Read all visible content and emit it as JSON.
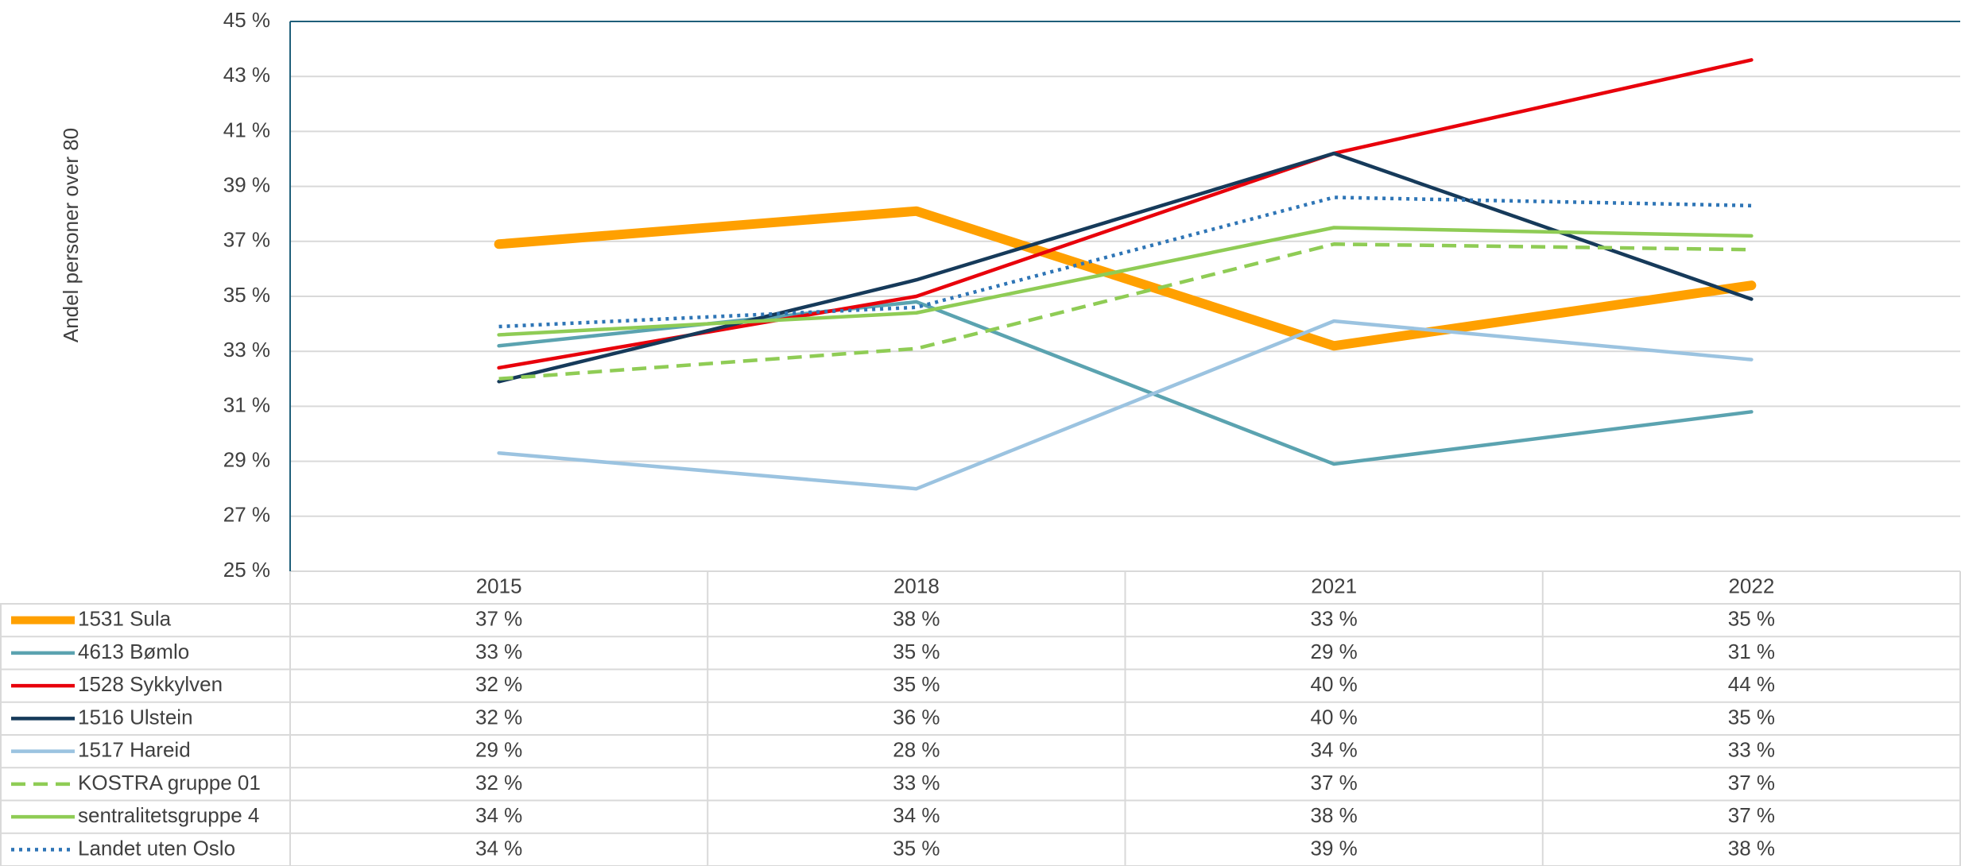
{
  "chart_data": {
    "type": "line",
    "y_label": "Andel personer over 80",
    "categories": [
      "2015",
      "2018",
      "2021",
      "2022"
    ],
    "ylim": [
      25,
      45
    ],
    "yticks": [
      {
        "value": 25,
        "label": "25 %"
      },
      {
        "value": 27,
        "label": "27 %"
      },
      {
        "value": 29,
        "label": "29 %"
      },
      {
        "value": 31,
        "label": "31 %"
      },
      {
        "value": 33,
        "label": "33 %"
      },
      {
        "value": 35,
        "label": "35 %"
      },
      {
        "value": 37,
        "label": "37 %"
      },
      {
        "value": 39,
        "label": "39 %"
      },
      {
        "value": 41,
        "label": "41 %"
      },
      {
        "value": 43,
        "label": "43 %"
      },
      {
        "value": 45,
        "label": "45 %"
      }
    ],
    "grid": true,
    "data_table": true,
    "series": [
      {
        "name": "1531 Sula",
        "color": "#FFA000",
        "line_width": 12,
        "style": "solid",
        "values": [
          36.9,
          38.1,
          33.2,
          35.4
        ],
        "value_labels": [
          "37 %",
          "38 %",
          "33 %",
          "35 %"
        ]
      },
      {
        "name": "4613 Bømlo",
        "color": "#5BA3B0",
        "line_width": 4.5,
        "style": "solid",
        "values": [
          33.2,
          34.8,
          28.9,
          30.8
        ],
        "value_labels": [
          "33 %",
          "35 %",
          "29 %",
          "31 %"
        ]
      },
      {
        "name": "1528 Sykkylven",
        "color": "#E8000B",
        "line_width": 4.5,
        "style": "solid",
        "values": [
          32.4,
          35.0,
          40.2,
          43.6
        ],
        "value_labels": [
          "32 %",
          "35 %",
          "40 %",
          "44 %"
        ]
      },
      {
        "name": "1516 Ulstein",
        "color": "#163A5A",
        "line_width": 4.5,
        "style": "solid",
        "values": [
          31.9,
          35.6,
          40.2,
          34.9
        ],
        "value_labels": [
          "32 %",
          "36 %",
          "40 %",
          "35 %"
        ]
      },
      {
        "name": "1517 Hareid",
        "color": "#9BC3E0",
        "line_width": 4.5,
        "style": "solid",
        "values": [
          29.3,
          28.0,
          34.1,
          32.7
        ],
        "value_labels": [
          "29 %",
          "28 %",
          "34 %",
          "33 %"
        ]
      },
      {
        "name": "KOSTRA gruppe 01",
        "color": "#8FCC55",
        "line_width": 4.5,
        "style": "dashed",
        "values": [
          32.0,
          33.1,
          36.9,
          36.7
        ],
        "value_labels": [
          "32 %",
          "33 %",
          "37 %",
          "37 %"
        ]
      },
      {
        "name": "sentralitetsgruppe 4",
        "color": "#8FCC55",
        "line_width": 4.5,
        "style": "solid",
        "values": [
          33.6,
          34.4,
          37.5,
          37.2
        ],
        "value_labels": [
          "34 %",
          "34 %",
          "38 %",
          "37 %"
        ]
      },
      {
        "name": "Landet uten Oslo",
        "color": "#2E75B6",
        "line_width": 4.5,
        "style": "dotted",
        "values": [
          33.9,
          34.6,
          38.6,
          38.3
        ],
        "value_labels": [
          "34 %",
          "35 %",
          "39 %",
          "38 %"
        ]
      }
    ]
  }
}
